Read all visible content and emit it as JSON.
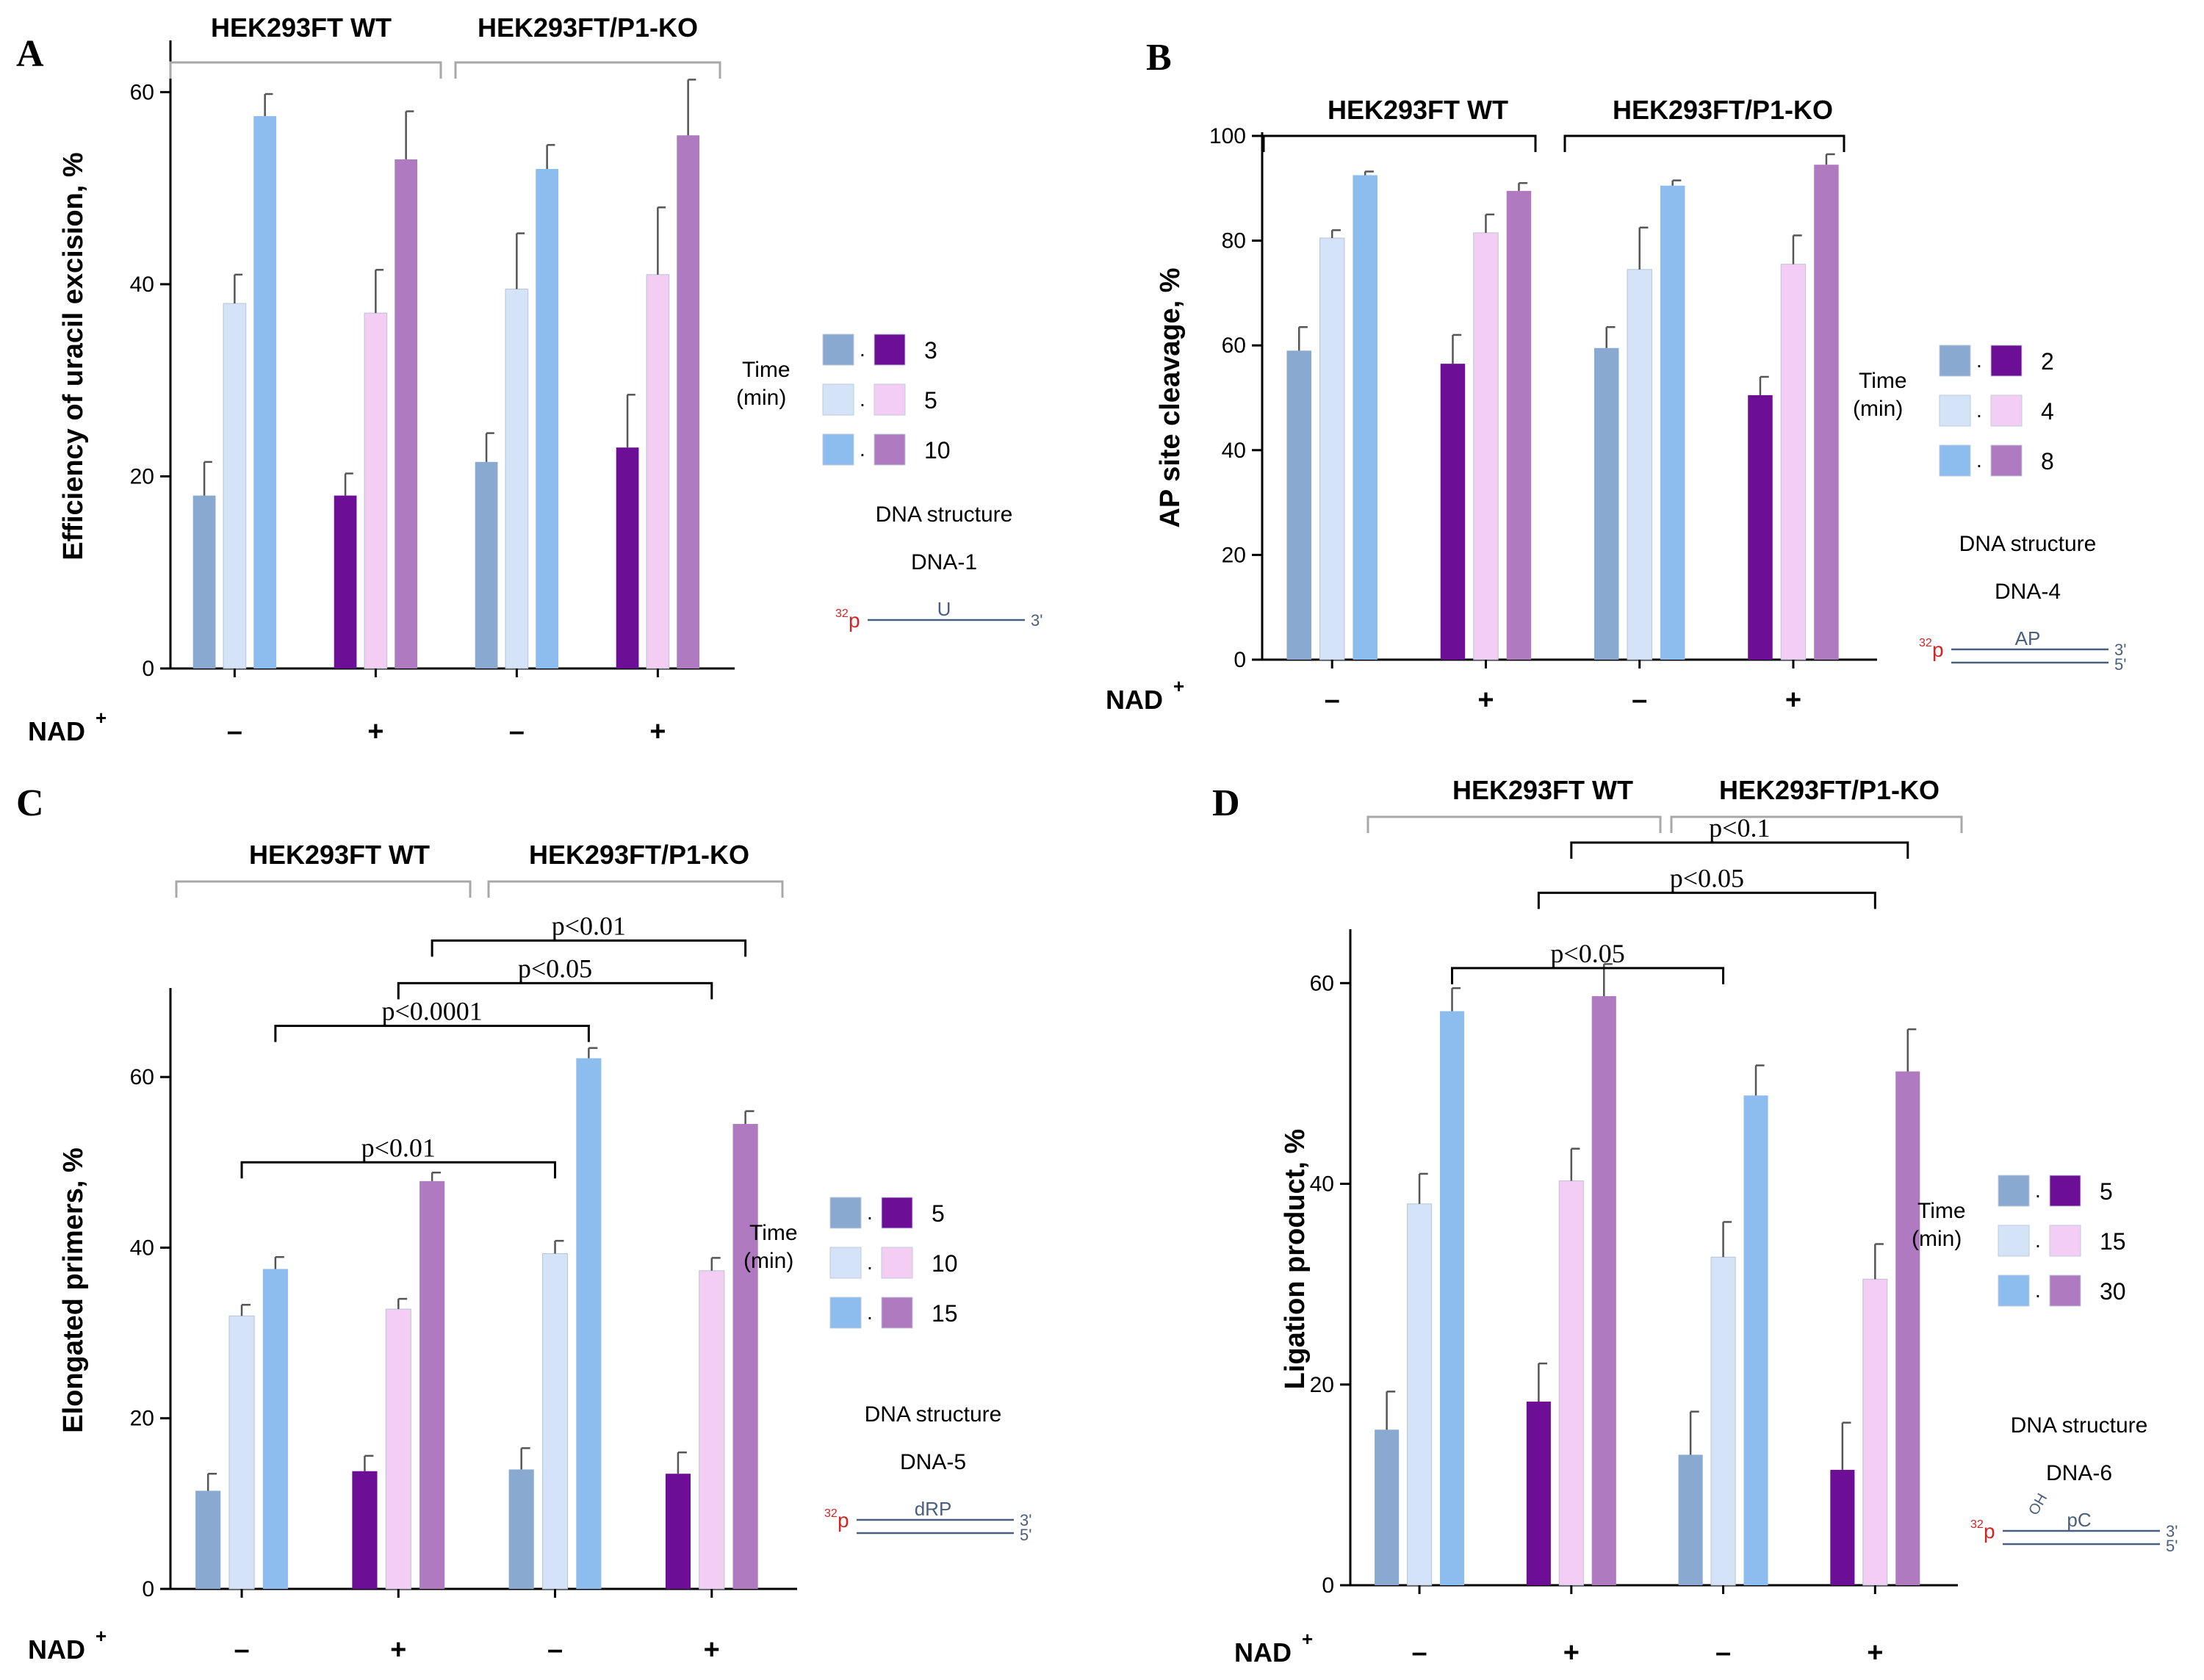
{
  "colors": {
    "wt_3": "#89a9d0",
    "wt_5": "#d4e3f8",
    "wt_10": "#8dbcee",
    "ko_3": "#6c0f96",
    "ko_5": "#f4cdf4",
    "ko_10": "#b07ac0",
    "axis": "#000000",
    "bracket_gray": "#a8a8a8",
    "red_label": "#d22424",
    "strand": "#4a5f7e"
  },
  "chart_data": [
    {
      "panel": "A",
      "type": "bar",
      "panel_label": "A",
      "ylabel": "Efficiency of uracil excision, %",
      "ylim": [
        0,
        65
      ],
      "yticks": [
        "0",
        "20",
        "40",
        "60"
      ],
      "nad_label": "NAD",
      "nad_superscript": "+",
      "categories": [
        "–",
        "+",
        "–",
        "+"
      ],
      "groups": [
        "HEK293FT WT",
        "HEK293FT/P1-KO"
      ],
      "series": [
        {
          "name": "3",
          "values": [
            18,
            18,
            21.5,
            23
          ],
          "errors": [
            3.5,
            2.3,
            3,
            5.5
          ]
        },
        {
          "name": "5",
          "values": [
            38,
            37,
            39.5,
            41
          ],
          "errors": [
            3,
            4.5,
            5.8,
            7
          ]
        },
        {
          "name": "10",
          "values": [
            57.5,
            53,
            52,
            55.5
          ],
          "errors": [
            2.3,
            5,
            2.5,
            5.8
          ]
        }
      ],
      "legend": {
        "title_line1": "Time",
        "title_line2": "(min)",
        "labels": [
          "3",
          "5",
          "10"
        ],
        "dna_title": "DNA structure",
        "dna_name": "DNA-1",
        "dna_p": "p",
        "dna_super": "32",
        "dna_mark": "U",
        "dna_end_top": "3'",
        "dna_end_bottom": ""
      },
      "significance": []
    },
    {
      "panel": "B",
      "type": "bar",
      "panel_label": "B",
      "ylabel": "AP site cleavage, %",
      "ylim": [
        0,
        100
      ],
      "yticks": [
        "0",
        "20",
        "40",
        "60",
        "80",
        "100"
      ],
      "nad_label": "NAD",
      "nad_superscript": "+",
      "categories": [
        "–",
        "+",
        "–",
        "+"
      ],
      "groups": [
        "HEK293FT WT",
        "HEK293FT/P1-KO"
      ],
      "series": [
        {
          "name": "2",
          "values": [
            59,
            56.5,
            59.5,
            50.5
          ],
          "errors": [
            4.5,
            5.5,
            4,
            3.5
          ]
        },
        {
          "name": "4",
          "values": [
            80.5,
            81.5,
            74.5,
            75.5
          ],
          "errors": [
            1.5,
            3.5,
            8,
            5.5
          ]
        },
        {
          "name": "8",
          "values": [
            92.5,
            89.5,
            90.5,
            94.5
          ],
          "errors": [
            0.7,
            1.5,
            1,
            2
          ]
        }
      ],
      "legend": {
        "title_line1": "Time",
        "title_line2": "(min)",
        "labels": [
          "2",
          "4",
          "8"
        ],
        "dna_title": "DNA structure",
        "dna_name": "DNA-4",
        "dna_p": "p",
        "dna_super": "32",
        "dna_mark": "AP",
        "dna_end_top": "3'",
        "dna_end_bottom": "5'"
      },
      "significance": []
    },
    {
      "panel": "C",
      "type": "bar",
      "panel_label": "C",
      "ylabel": "Elongated primers, %",
      "ylim": [
        0,
        70
      ],
      "yticks": [
        "0",
        "20",
        "40",
        "60"
      ],
      "nad_label": "NAD",
      "nad_superscript": "+",
      "categories": [
        "–",
        "+",
        "–",
        "+"
      ],
      "groups": [
        "HEK293FT WT",
        "HEK293FT/P1-KO"
      ],
      "series": [
        {
          "name": "5",
          "values": [
            11.5,
            13.8,
            14,
            13.5
          ],
          "errors": [
            2,
            1.8,
            2.5,
            2.5
          ]
        },
        {
          "name": "10",
          "values": [
            32,
            32.8,
            39.3,
            37.3
          ],
          "errors": [
            1.3,
            1.2,
            1.5,
            1.5
          ]
        },
        {
          "name": "15",
          "values": [
            37.5,
            47.8,
            62.2,
            54.5
          ],
          "errors": [
            1.4,
            1,
            1.2,
            1.5
          ]
        }
      ],
      "legend": {
        "title_line1": "Time",
        "title_line2": "(min)",
        "labels": [
          "5",
          "10",
          "15"
        ],
        "dna_title": "DNA structure",
        "dna_name": "DNA-5",
        "dna_p": "p",
        "dna_super": "32",
        "dna_mark": "dRP",
        "dna_end_top": "3'",
        "dna_end_bottom": "5'"
      },
      "significance": [
        {
          "label": "p<0.01",
          "from": [
            0,
            1
          ],
          "to": [
            2,
            1
          ],
          "level": 50
        },
        {
          "label": "p<0.0001",
          "from": [
            0,
            2
          ],
          "to": [
            2,
            2
          ],
          "level": 66
        },
        {
          "label": "p<0.05",
          "from": [
            1,
            1
          ],
          "to": [
            3,
            1
          ],
          "level": 71
        },
        {
          "label": "p<0.01",
          "from": [
            1,
            2
          ],
          "to": [
            3,
            2
          ],
          "level": 76
        }
      ]
    },
    {
      "panel": "D",
      "type": "bar",
      "panel_label": "D",
      "ylabel": "Ligation product, %",
      "ylim": [
        0,
        65
      ],
      "yticks": [
        "0",
        "20",
        "40",
        "60"
      ],
      "nad_label": "NAD",
      "nad_superscript": "+",
      "categories": [
        "–",
        "+",
        "–",
        "+"
      ],
      "groups": [
        "HEK293FT WT",
        "HEK293FT/P1-KO"
      ],
      "series": [
        {
          "name": "5",
          "values": [
            15.5,
            18.3,
            13,
            11.5
          ],
          "errors": [
            3.8,
            3.8,
            4.3,
            4.7
          ]
        },
        {
          "name": "15",
          "values": [
            38,
            40.3,
            32.7,
            30.5
          ],
          "errors": [
            3,
            3.2,
            3.5,
            3.5
          ]
        },
        {
          "name": "30",
          "values": [
            57.2,
            58.7,
            48.8,
            51.2
          ],
          "errors": [
            2.3,
            3.2,
            3,
            4.2
          ]
        }
      ],
      "legend": {
        "title_line1": "Time",
        "title_line2": "(min)",
        "labels": [
          "5",
          "15",
          "30"
        ],
        "dna_title": "DNA structure",
        "dna_name": "DNA-6",
        "dna_p": "p",
        "dna_super": "32",
        "dna_mark": "pC",
        "dna_oh": "OH",
        "dna_end_top": "3'",
        "dna_end_bottom": "5'"
      },
      "significance": [
        {
          "label": "p<0.05",
          "from": [
            0,
            2
          ],
          "to": [
            2,
            1
          ],
          "level": 61.5
        },
        {
          "label": "p<0.05",
          "from": [
            1,
            0
          ],
          "to": [
            3,
            1
          ],
          "level": 69
        },
        {
          "label": "p<0.1",
          "from": [
            1,
            1
          ],
          "to": [
            3,
            2
          ],
          "level": 74
        }
      ]
    }
  ]
}
